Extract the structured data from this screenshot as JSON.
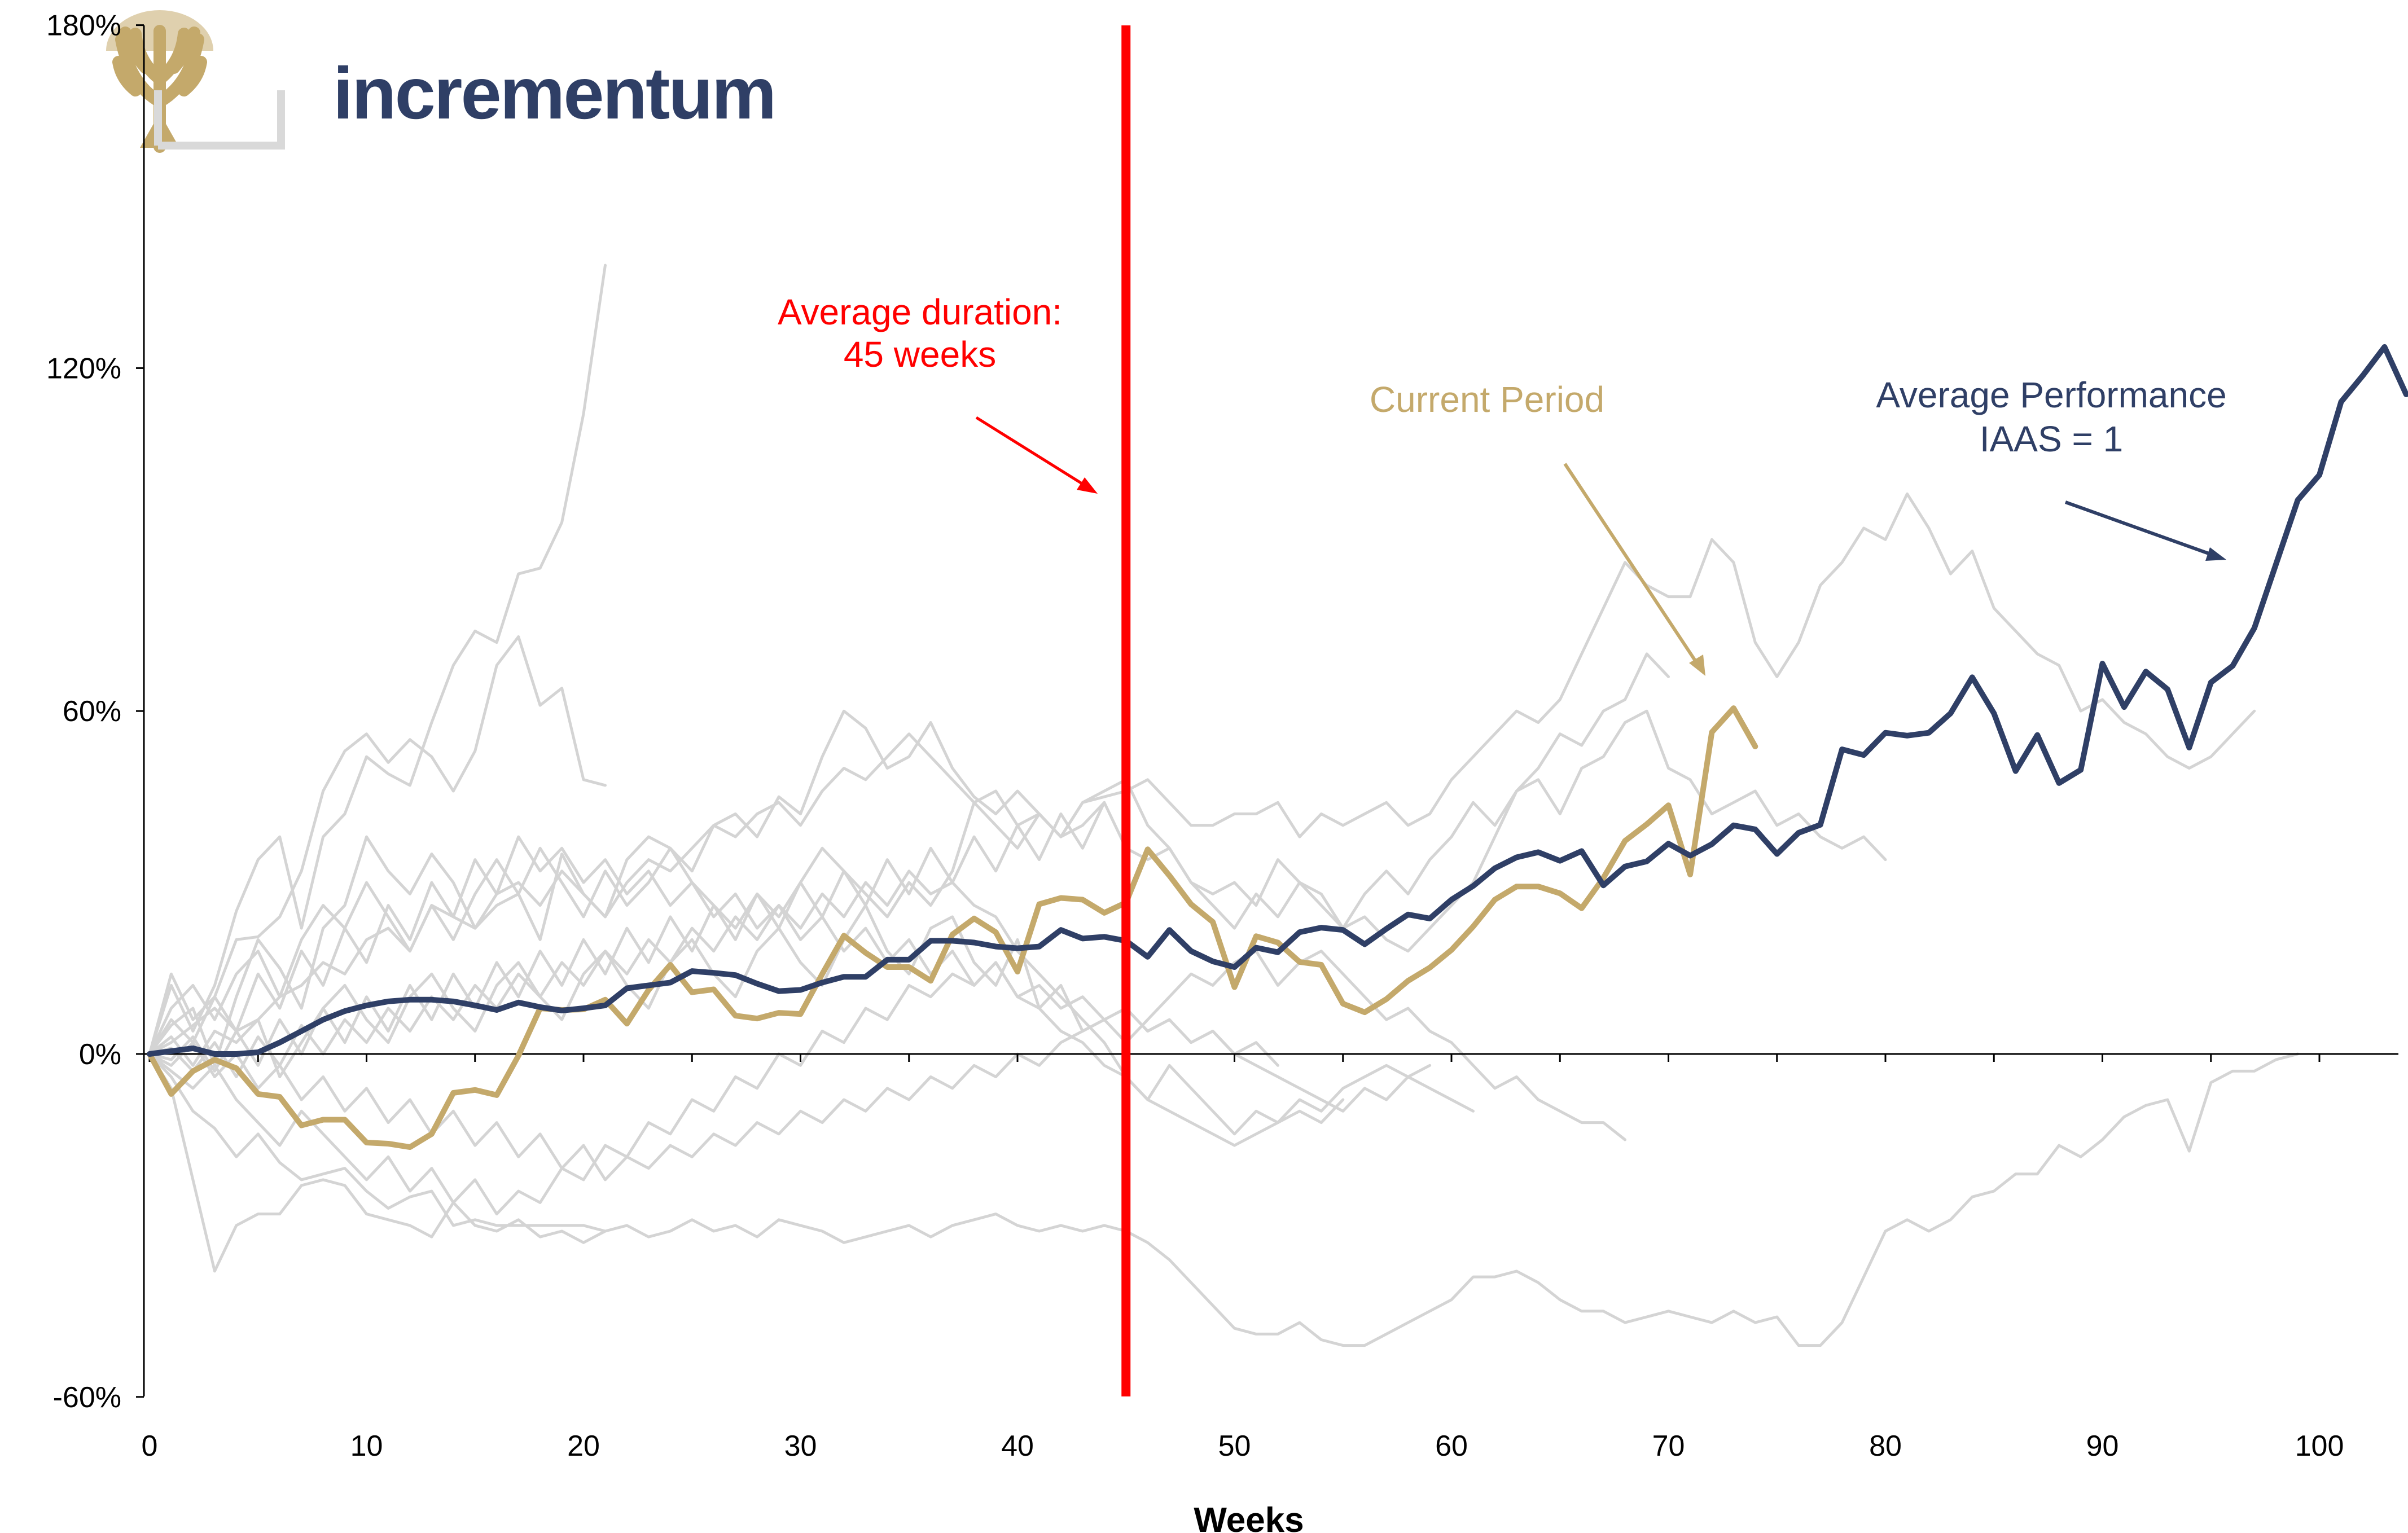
{
  "logo": {
    "text": "incrementum",
    "color": "#2f3f66",
    "gold": "#c4a96b"
  },
  "chart_data": {
    "type": "line",
    "title": "",
    "xlabel": "Weeks",
    "ylabel": "",
    "xlim": [
      0,
      104
    ],
    "ylim": [
      -60,
      180
    ],
    "x_ticks": [
      0,
      10,
      20,
      30,
      40,
      50,
      60,
      70,
      80,
      90,
      100
    ],
    "y_ticks": [
      -60,
      0,
      60,
      120,
      180
    ],
    "y_tick_labels": [
      "-60%",
      "0%",
      "60%",
      "120%",
      "180%"
    ],
    "grid": false,
    "legend": "none",
    "vline": {
      "x": 45,
      "color": "#ff0000"
    },
    "annotations": [
      {
        "name": "average-duration",
        "lines": [
          "Average duration:",
          "45 weeks"
        ],
        "color": "#ff0000"
      },
      {
        "name": "current-period",
        "lines": [
          "Current Period"
        ],
        "color": "#c4a96b"
      },
      {
        "name": "average-performance",
        "lines": [
          "Average Performance",
          "IAAS = 1"
        ],
        "color": "#2f3f66"
      }
    ],
    "series": [
      {
        "role": "average",
        "color": "#2f3f66",
        "values": [
          0,
          0.5,
          1,
          0,
          0,
          0.3,
          2,
          4,
          6,
          7.5,
          8.5,
          9.2,
          9.5,
          9.5,
          9.2,
          8.5,
          7.7,
          9,
          8.2,
          7.6,
          8,
          8.5,
          11.5,
          12,
          12.5,
          14.5,
          14.2,
          13.8,
          12.3,
          11,
          11.2,
          12.5,
          13.5,
          13.5,
          16.5,
          16.5,
          19.8,
          19.8,
          19.5,
          18.8,
          18.5,
          18.8,
          21.7,
          20.2,
          20.5,
          19.8,
          17,
          21.7,
          18,
          16.2,
          15.2,
          18.6,
          17.8,
          21.3,
          22.1,
          21.7,
          19.2,
          21.9,
          24.4,
          23.7,
          27,
          29.4,
          32.5,
          34.4,
          35.3,
          33.8,
          35.5,
          29.5,
          32.8,
          33.7,
          36.8,
          34.7,
          36.7,
          40,
          39.3,
          35,
          38.7,
          40.1,
          53.3,
          52.3,
          56.2,
          55.7,
          56.2,
          59.6,
          65.9,
          59.6,
          49.5,
          55.8,
          47.4,
          49.7,
          68.3,
          60.7,
          66.9,
          63.8,
          53.6,
          65,
          67.9,
          74.5,
          85.7,
          96.9,
          101.3,
          114.1,
          118.7,
          123.7,
          115.4
        ]
      },
      {
        "role": "current",
        "color": "#c4a96b",
        "values": [
          0,
          -7,
          -3,
          -1,
          -2.5,
          -7,
          -7.5,
          -12.5,
          -11.5,
          -11.5,
          -15.5,
          -15.7,
          -16.3,
          -14,
          -6.8,
          -6.3,
          -7.2,
          -0.3,
          8,
          7.7,
          7.8,
          9.5,
          5.3,
          11.2,
          15.6,
          10.8,
          11.3,
          6.7,
          6.2,
          7.2,
          7,
          14,
          20.7,
          17.7,
          15.2,
          15.2,
          12.8,
          20.9,
          23.7,
          21.3,
          14.4,
          26.2,
          27.3,
          27,
          24.7,
          26.5,
          35.8,
          31.2,
          26.2,
          23.1,
          11.7,
          20.6,
          19.5,
          16.1,
          15.6,
          8.8,
          7.3,
          9.6,
          12.8,
          15.1,
          18.2,
          22.3,
          27,
          29.3,
          29.3,
          28.1,
          25.5,
          30.8,
          37.3,
          40.2,
          43.5,
          31.4,
          56.3,
          60.5,
          53.8
        ]
      },
      {
        "role": "history",
        "color": "#d4d4d4",
        "values": [
          0,
          14,
          6,
          10,
          20,
          20.5,
          24,
          32,
          46,
          53,
          56,
          51,
          55,
          52,
          46,
          53,
          68,
          73,
          61,
          64,
          48,
          47
        ]
      },
      {
        "role": "history",
        "color": "#d4d4d4",
        "values": [
          0,
          12,
          4,
          12,
          25,
          34,
          38,
          22,
          38,
          42,
          52,
          49,
          47,
          58,
          68,
          74,
          72,
          84,
          85,
          93,
          112,
          138
        ]
      },
      {
        "role": "history",
        "color": "#d4d4d4",
        "values": [
          0,
          -6,
          -22,
          -38,
          -30,
          -28,
          -28,
          -23,
          -22,
          -23,
          -28,
          -29,
          -30,
          -32,
          -26,
          -30,
          -31,
          -29,
          -32,
          -31,
          -33,
          -31
        ]
      },
      {
        "role": "history",
        "color": "#d4d4d4",
        "values": [
          0,
          -4,
          -10,
          -13,
          -18,
          -14,
          -19,
          -22,
          -21,
          -20,
          -24,
          -27,
          -25,
          -24,
          -30,
          -29,
          -30,
          -30,
          -30,
          -30,
          -30,
          -31,
          -30,
          -32,
          -31,
          -29,
          -31,
          -30,
          -32,
          -29,
          -30,
          -31,
          -33,
          -32,
          -31,
          -30,
          -32,
          -30,
          -29,
          -28,
          -30,
          -31,
          -30,
          -31,
          -30,
          -31,
          -33,
          -36,
          -40,
          -44,
          -48,
          -49,
          -49,
          -47,
          -50,
          -51,
          -51,
          -49,
          -47,
          -45,
          -43,
          -39,
          -39,
          -38,
          -40,
          -43,
          -45,
          -45,
          -47,
          -46,
          -45,
          -46,
          -47,
          -45,
          -47,
          -46,
          -51,
          -51,
          -47,
          -39,
          -31,
          -29,
          -31,
          -29,
          -25,
          -24,
          -21,
          -21,
          -16,
          -18,
          -15,
          -11,
          -9,
          -8,
          -17,
          -5,
          -3,
          -3,
          -1,
          0
        ]
      },
      {
        "role": "history",
        "color": "#d4d4d4",
        "values": [
          0,
          5,
          8,
          -2,
          10,
          20,
          15,
          8,
          22,
          26,
          38,
          32,
          28,
          35,
          30,
          22,
          26,
          28,
          20,
          35,
          28,
          24,
          34,
          38,
          36,
          32,
          40,
          42,
          38,
          45,
          42,
          52,
          60,
          57,
          50,
          52,
          58,
          50,
          45,
          42,
          46,
          42,
          38,
          44,
          45,
          46,
          48,
          44,
          40,
          40,
          42,
          42,
          44,
          38,
          42,
          40,
          42,
          44,
          40,
          42,
          48,
          52,
          56,
          60,
          58,
          62,
          70,
          78,
          86,
          82,
          80,
          80,
          90,
          86,
          72,
          66,
          72,
          82,
          86,
          92,
          90,
          98,
          92,
          84,
          88,
          78,
          74,
          70,
          68,
          60,
          62,
          58,
          56,
          52,
          50,
          52,
          56,
          60
        ]
      },
      {
        "role": "history",
        "color": "#d4d4d4",
        "values": [
          0,
          2,
          5,
          8,
          4,
          6,
          10,
          12,
          16,
          14,
          20,
          22,
          18,
          26,
          24,
          22,
          28,
          30,
          26,
          32,
          28,
          24,
          30,
          34,
          32,
          36,
          40,
          38,
          42,
          44,
          40,
          46,
          50,
          48,
          52,
          56,
          52,
          48,
          44,
          46,
          40,
          42,
          38,
          40,
          44,
          36,
          34,
          36,
          30,
          28,
          30,
          26,
          34,
          30,
          28,
          22,
          24,
          20,
          18,
          22,
          26,
          30,
          38,
          46,
          48,
          42,
          50,
          52,
          58,
          60,
          50,
          48,
          42,
          44,
          46,
          40,
          42,
          38,
          36,
          38,
          34
        ]
      },
      {
        "role": "history",
        "color": "#d4d4d4",
        "values": [
          0,
          3,
          -2,
          4,
          2,
          6,
          -4,
          2,
          8,
          12,
          6,
          2,
          10,
          14,
          8,
          4,
          12,
          16,
          10,
          6,
          14,
          18,
          12,
          8,
          16,
          20,
          14,
          10,
          18,
          22,
          16,
          12,
          20,
          26,
          18,
          14,
          22,
          24,
          16,
          12,
          20,
          8,
          12,
          4,
          6,
          2,
          6,
          10,
          14,
          12,
          16,
          18,
          12,
          16,
          18,
          14,
          10,
          6,
          8,
          4,
          2,
          -2,
          -6,
          -4,
          -8,
          -10,
          -12,
          -12,
          -15
        ]
      },
      {
        "role": "history",
        "color": "#d4d4d4",
        "values": [
          0,
          -2,
          2,
          -4,
          0,
          -6,
          -2,
          -8,
          -4,
          -10,
          -6,
          -12,
          -8,
          -14,
          -10,
          -16,
          -12,
          -18,
          -14,
          -20,
          -16,
          -22,
          -18,
          -20,
          -16,
          -18,
          -14,
          -16,
          -12,
          -14,
          -10,
          -12,
          -8,
          -10,
          -6,
          -8,
          -4,
          -6,
          -2,
          -4,
          0,
          -2,
          2,
          4,
          6,
          8,
          4,
          6,
          2,
          4,
          0,
          -2,
          -4,
          -6,
          -8,
          -10,
          -6,
          -8,
          -4,
          -6,
          -8,
          -10
        ]
      },
      {
        "role": "history",
        "color": "#d4d4d4",
        "values": [
          0,
          8,
          12,
          6,
          14,
          18,
          10,
          20,
          26,
          22,
          30,
          24,
          18,
          26,
          20,
          28,
          34,
          28,
          36,
          30,
          24,
          32,
          26,
          30,
          36,
          30,
          26,
          22,
          28,
          24,
          30,
          36,
          32,
          28,
          24,
          30,
          26,
          32,
          44,
          40,
          36,
          42,
          38,
          44,
          46,
          48,
          40,
          36,
          30,
          26,
          22,
          28,
          24,
          30,
          26,
          22,
          28,
          32,
          28,
          34,
          38,
          44,
          40,
          46,
          50,
          56,
          54,
          60,
          62,
          70,
          66
        ]
      },
      {
        "role": "history",
        "color": "#d4d4d4",
        "values": [
          0,
          1,
          -3,
          2,
          -4,
          3,
          -2,
          5,
          0,
          6,
          2,
          8,
          4,
          10,
          6,
          12,
          8,
          14,
          10,
          16,
          12,
          18,
          14,
          20,
          16,
          22,
          18,
          24,
          20,
          26,
          22,
          28,
          24,
          30,
          26,
          32,
          28,
          30,
          26,
          24,
          18,
          14,
          10,
          6,
          2,
          -4,
          -8,
          -2,
          -6,
          -10,
          -14,
          -10,
          -12,
          -8,
          -10,
          -6,
          -4,
          -2,
          -4,
          -2
        ]
      },
      {
        "role": "history",
        "color": "#d4d4d4",
        "values": [
          0,
          -3,
          -6,
          -2,
          -8,
          -12,
          -16,
          -10,
          -14,
          -18,
          -22,
          -18,
          -24,
          -20,
          -26,
          -22,
          -28,
          -24,
          -26,
          -20,
          -22,
          -16,
          -18,
          -12,
          -14,
          -8,
          -10,
          -4,
          -6,
          0,
          -2,
          4,
          2,
          8,
          6,
          12,
          10,
          14,
          12,
          16,
          10,
          8,
          4,
          2,
          -2,
          -4,
          -8,
          -10,
          -12,
          -14,
          -16,
          -14,
          -12,
          -10,
          -12,
          -8
        ]
      },
      {
        "role": "history",
        "color": "#d4d4d4",
        "values": [
          0,
          6,
          2,
          10,
          4,
          14,
          8,
          18,
          12,
          22,
          16,
          26,
          20,
          30,
          24,
          34,
          28,
          38,
          32,
          36,
          30,
          34,
          28,
          32,
          26,
          30,
          24,
          28,
          22,
          26,
          20,
          24,
          18,
          22,
          16,
          20,
          14,
          18,
          12,
          16,
          10,
          12,
          8,
          10,
          6,
          8,
          4,
          6,
          2,
          4,
          0,
          2,
          -2
        ]
      },
      {
        "role": "history",
        "color": "#d4d4d4",
        "values": [
          0,
          -1,
          3,
          -3,
          4,
          -2,
          6,
          0,
          8,
          2,
          10,
          4,
          12,
          6,
          14,
          8,
          16,
          10,
          18,
          12,
          20,
          14,
          22,
          16,
          24,
          18,
          26,
          20,
          28,
          22,
          30,
          24,
          32,
          26,
          34,
          28,
          36,
          30,
          38,
          32,
          40,
          34,
          42,
          36,
          44
        ]
      }
    ]
  }
}
